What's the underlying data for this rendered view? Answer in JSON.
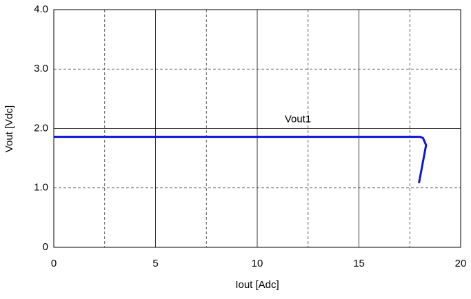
{
  "chart_data": {
    "type": "line",
    "xlabel": "Iout [Adc]",
    "ylabel": "Vout [Vdc]",
    "annotation": "Vout1",
    "x": [
      0,
      18.0,
      18.15,
      18.3,
      17.95
    ],
    "series": [
      {
        "name": "Vout1",
        "color": "#0a14d8",
        "values": [
          1.86,
          1.86,
          1.84,
          1.72,
          1.08
        ]
      }
    ],
    "xlim": [
      0,
      20
    ],
    "xticks": [
      0,
      5,
      10,
      15,
      20
    ],
    "ylim": [
      0,
      4
    ],
    "yticks": [
      0,
      {
        "value": 1,
        "label": "1.0"
      },
      {
        "value": 2,
        "label": "2.0"
      },
      {
        "value": 3,
        "label": "3.0"
      },
      {
        "value": 4,
        "label": "4.0"
      }
    ],
    "grid": true,
    "xgrid_dashed": [
      2.5,
      7.5,
      12.5,
      17.5
    ],
    "ygrid_dashed": [
      1,
      3
    ]
  }
}
